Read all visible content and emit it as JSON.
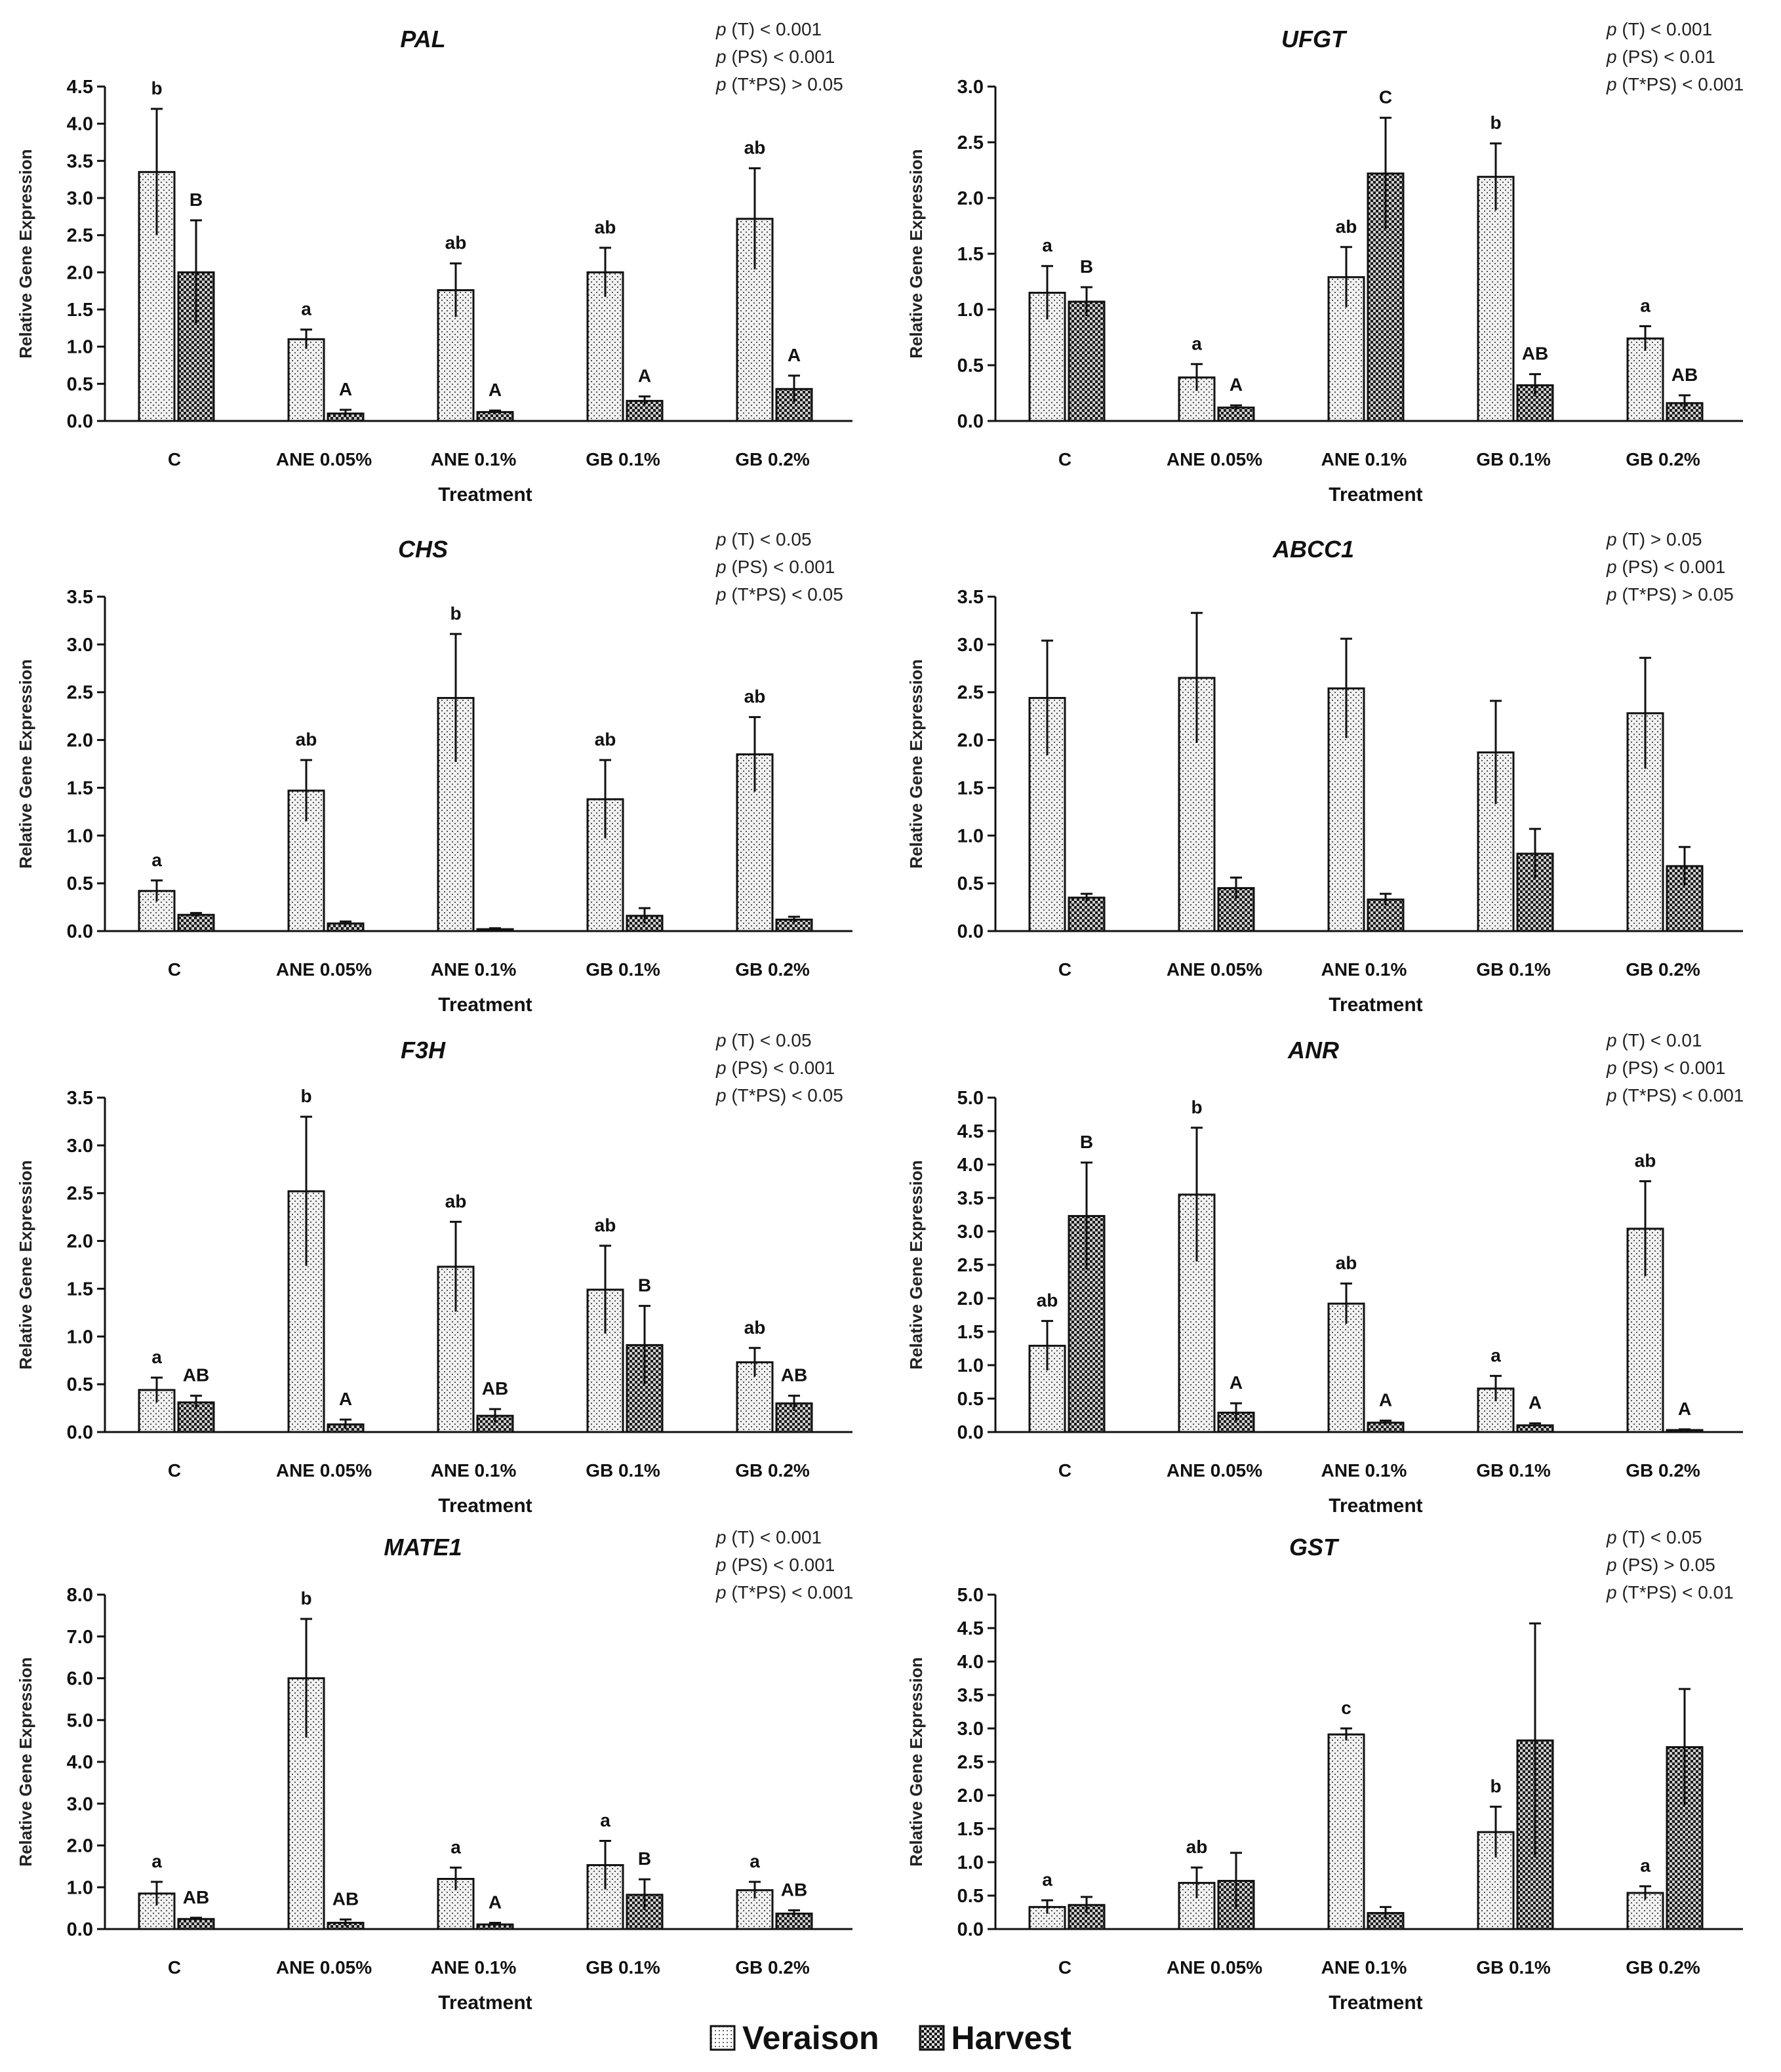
{
  "chart_data": [
    {
      "type": "bar",
      "title": "PAL",
      "xlabel": "Treatment",
      "ylabel": "Relative Gene Expression",
      "ylim": [
        0,
        4.5
      ],
      "ytick_step": 0.5,
      "categories": [
        "C",
        "ANE 0.05%",
        "ANE 0.1%",
        "GB 0.1%",
        "GB 0.2%"
      ],
      "p_values": [
        {
          "term": "(T)",
          "value": "< 0.001"
        },
        {
          "term": "(PS)",
          "value": "< 0.001"
        },
        {
          "term": "(T*PS)",
          "value": "> 0.05"
        }
      ],
      "series": [
        {
          "name": "Veraison",
          "values": [
            3.35,
            1.1,
            1.76,
            2.0,
            2.72
          ],
          "errors": [
            0.85,
            0.13,
            0.36,
            0.33,
            0.68
          ],
          "letters": [
            "b",
            "a",
            "ab",
            "ab",
            "ab"
          ]
        },
        {
          "name": "Harvest",
          "values": [
            2.0,
            0.1,
            0.12,
            0.27,
            0.43
          ],
          "errors": [
            0.7,
            0.05,
            0.02,
            0.06,
            0.18
          ],
          "letters": [
            "B",
            "A",
            "A",
            "A",
            "A"
          ]
        }
      ]
    },
    {
      "type": "bar",
      "title": "UFGT",
      "xlabel": "Treatment",
      "ylabel": "Relative Gene Expression",
      "ylim": [
        0,
        3.0
      ],
      "ytick_step": 0.5,
      "categories": [
        "C",
        "ANE 0.05%",
        "ANE 0.1%",
        "GB 0.1%",
        "GB 0.2%"
      ],
      "p_values": [
        {
          "term": "(T)",
          "value": "< 0.001"
        },
        {
          "term": "(PS)",
          "value": "< 0.01"
        },
        {
          "term": "(T*PS)",
          "value": "< 0.001"
        }
      ],
      "series": [
        {
          "name": "Veraison",
          "values": [
            1.15,
            0.39,
            1.29,
            2.19,
            0.74
          ],
          "errors": [
            0.24,
            0.12,
            0.27,
            0.3,
            0.11
          ],
          "letters": [
            "a",
            "a",
            "ab",
            "b",
            "a"
          ]
        },
        {
          "name": "Harvest",
          "values": [
            1.07,
            0.12,
            2.22,
            0.32,
            0.16
          ],
          "errors": [
            0.13,
            0.02,
            0.5,
            0.1,
            0.07
          ],
          "letters": [
            "B",
            "A",
            "C",
            "AB",
            "AB"
          ]
        }
      ]
    },
    {
      "type": "bar",
      "title": "CHS",
      "xlabel": "Treatment",
      "ylabel": "Relative Gene Expression",
      "ylim": [
        0,
        3.5
      ],
      "ytick_step": 0.5,
      "categories": [
        "C",
        "ANE 0.05%",
        "ANE 0.1%",
        "GB 0.1%",
        "GB 0.2%"
      ],
      "p_values": [
        {
          "term": "(T)",
          "value": "< 0.05"
        },
        {
          "term": "(PS)",
          "value": "< 0.001"
        },
        {
          "term": "(T*PS)",
          "value": "< 0.05"
        }
      ],
      "series": [
        {
          "name": "Veraison",
          "values": [
            0.42,
            1.47,
            2.44,
            1.38,
            1.85
          ],
          "errors": [
            0.11,
            0.32,
            0.67,
            0.41,
            0.39
          ],
          "letters": [
            "a",
            "ab",
            "b",
            "ab",
            "ab"
          ]
        },
        {
          "name": "Harvest",
          "values": [
            0.17,
            0.08,
            0.02,
            0.16,
            0.12
          ],
          "errors": [
            0.02,
            0.02,
            0.01,
            0.08,
            0.03
          ],
          "letters": [
            "",
            "",
            "",
            "",
            ""
          ]
        }
      ]
    },
    {
      "type": "bar",
      "title": "ABCC1",
      "xlabel": "Treatment",
      "ylabel": "Relative Gene Expression",
      "ylim": [
        0,
        3.5
      ],
      "ytick_step": 0.5,
      "categories": [
        "C",
        "ANE 0.05%",
        "ANE 0.1%",
        "GB 0.1%",
        "GB 0.2%"
      ],
      "p_values": [
        {
          "term": "(T)",
          "value": "> 0.05"
        },
        {
          "term": "(PS)",
          "value": "< 0.001"
        },
        {
          "term": "(T*PS)",
          "value": "> 0.05"
        }
      ],
      "series": [
        {
          "name": "Veraison",
          "values": [
            2.44,
            2.65,
            2.54,
            1.87,
            2.28
          ],
          "errors": [
            0.6,
            0.68,
            0.52,
            0.54,
            0.58
          ],
          "letters": [
            "",
            "",
            "",
            "",
            ""
          ]
        },
        {
          "name": "Harvest",
          "values": [
            0.35,
            0.45,
            0.33,
            0.81,
            0.68
          ],
          "errors": [
            0.04,
            0.11,
            0.06,
            0.26,
            0.2
          ],
          "letters": [
            "",
            "",
            "",
            "",
            ""
          ]
        }
      ]
    },
    {
      "type": "bar",
      "title": "F3H",
      "xlabel": "Treatment",
      "ylabel": "Relative Gene Expression",
      "ylim": [
        0,
        3.5
      ],
      "ytick_step": 0.5,
      "categories": [
        "C",
        "ANE 0.05%",
        "ANE 0.1%",
        "GB 0.1%",
        "GB 0.2%"
      ],
      "p_values": [
        {
          "term": "(T)",
          "value": "< 0.05"
        },
        {
          "term": "(PS)",
          "value": "< 0.001"
        },
        {
          "term": "(T*PS)",
          "value": "< 0.05"
        }
      ],
      "series": [
        {
          "name": "Veraison",
          "values": [
            0.44,
            2.52,
            1.73,
            1.49,
            0.73
          ],
          "errors": [
            0.13,
            0.78,
            0.47,
            0.46,
            0.15
          ],
          "letters": [
            "a",
            "b",
            "ab",
            "ab",
            "ab"
          ]
        },
        {
          "name": "Harvest",
          "values": [
            0.31,
            0.08,
            0.17,
            0.91,
            0.3
          ],
          "errors": [
            0.07,
            0.05,
            0.07,
            0.41,
            0.08
          ],
          "letters": [
            "AB",
            "A",
            "AB",
            "B",
            "AB"
          ]
        }
      ]
    },
    {
      "type": "bar",
      "title": "ANR",
      "xlabel": "Treatment",
      "ylabel": "Relative Gene Expression",
      "ylim": [
        0,
        5.0
      ],
      "ytick_step": 0.5,
      "categories": [
        "C",
        "ANE 0.05%",
        "ANE 0.1%",
        "GB 0.1%",
        "GB 0.2%"
      ],
      "p_values": [
        {
          "term": "(T)",
          "value": "< 0.01"
        },
        {
          "term": "(PS)",
          "value": "< 0.001"
        },
        {
          "term": "(T*PS)",
          "value": "< 0.001"
        }
      ],
      "series": [
        {
          "name": "Veraison",
          "values": [
            1.29,
            3.55,
            1.92,
            0.65,
            3.04
          ],
          "errors": [
            0.37,
            1.0,
            0.3,
            0.19,
            0.71
          ],
          "letters": [
            "ab",
            "b",
            "ab",
            "a",
            "ab"
          ]
        },
        {
          "name": "Harvest",
          "values": [
            3.23,
            0.29,
            0.14,
            0.1,
            0.03
          ],
          "errors": [
            0.8,
            0.14,
            0.03,
            0.03,
            0.01
          ],
          "letters": [
            "B",
            "A",
            "A",
            "A",
            "A"
          ]
        }
      ]
    },
    {
      "type": "bar",
      "title": "MATE1",
      "xlabel": "Treatment",
      "ylabel": "Relative Gene Expression",
      "ylim": [
        0,
        8.0
      ],
      "ytick_step": 1.0,
      "categories": [
        "C",
        "ANE 0.05%",
        "ANE 0.1%",
        "GB 0.1%",
        "GB 0.2%"
      ],
      "p_values": [
        {
          "term": "(T)",
          "value": "< 0.001"
        },
        {
          "term": "(PS)",
          "value": "< 0.001"
        },
        {
          "term": "(T*PS)",
          "value": "< 0.001"
        }
      ],
      "series": [
        {
          "name": "Veraison",
          "values": [
            0.85,
            6.0,
            1.2,
            1.53,
            0.93
          ],
          "errors": [
            0.28,
            1.42,
            0.27,
            0.58,
            0.2
          ],
          "letters": [
            "a",
            "b",
            "a",
            "a",
            "a"
          ]
        },
        {
          "name": "Harvest",
          "values": [
            0.24,
            0.15,
            0.11,
            0.82,
            0.37
          ],
          "errors": [
            0.03,
            0.08,
            0.04,
            0.37,
            0.08
          ],
          "letters": [
            "AB",
            "AB",
            "A",
            "B",
            "AB"
          ]
        }
      ]
    },
    {
      "type": "bar",
      "title": "GST",
      "xlabel": "Treatment",
      "ylabel": "Relative Gene Expression",
      "ylim": [
        0,
        5.0
      ],
      "ytick_step": 0.5,
      "categories": [
        "C",
        "ANE 0.05%",
        "ANE 0.1%",
        "GB 0.1%",
        "GB 0.2%"
      ],
      "p_values": [
        {
          "term": "(T)",
          "value": "< 0.05"
        },
        {
          "term": "(PS)",
          "value": "> 0.05"
        },
        {
          "term": "(T*PS)",
          "value": "< 0.01"
        }
      ],
      "series": [
        {
          "name": "Veraison",
          "values": [
            0.33,
            0.69,
            2.91,
            1.45,
            0.54
          ],
          "errors": [
            0.1,
            0.23,
            0.09,
            0.38,
            0.1
          ],
          "letters": [
            "a",
            "ab",
            "c",
            "b",
            "a"
          ]
        },
        {
          "name": "Harvest",
          "values": [
            0.36,
            0.72,
            0.24,
            2.82,
            2.72
          ],
          "errors": [
            0.12,
            0.42,
            0.09,
            1.75,
            0.87
          ],
          "letters": [
            "",
            "",
            "",
            "",
            ""
          ]
        }
      ]
    }
  ],
  "p_symbol": "p",
  "legend": {
    "placement": "bottom-center",
    "items": [
      {
        "label": "Veraison",
        "pattern": "dotted-light"
      },
      {
        "label": "Harvest",
        "pattern": "checker-dark"
      }
    ]
  },
  "colors": {
    "axis": "#111111",
    "veraison_fill": "#f2f2f2",
    "harvest_fill": "#1a1a1a"
  }
}
